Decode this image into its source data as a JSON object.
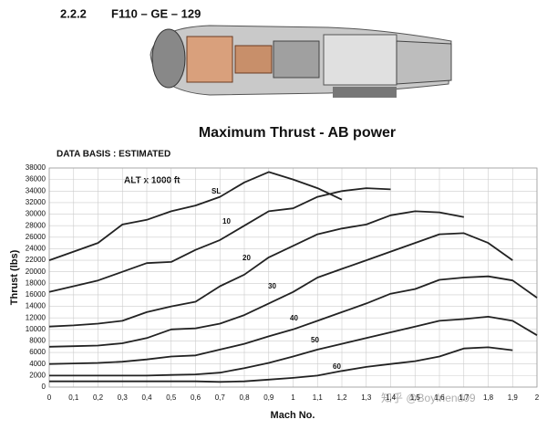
{
  "header": {
    "section": "2.2.2",
    "engine": "F110 – GE – 129"
  },
  "chart_data": {
    "type": "line",
    "title": "Maximum Thrust - AB power",
    "subtitle": "DATA BASIS : ESTIMATED",
    "annotation": "ALT x 1000 ft",
    "watermark": "知乎 @Boyfriend09",
    "x_label": "Mach No.",
    "y_label": "Thrust (lbs)",
    "x": [
      0,
      0.1,
      0.2,
      0.3,
      0.4,
      0.5,
      0.6,
      0.7,
      0.8,
      0.9,
      1,
      1.1,
      1.2,
      1.3,
      1.4,
      1.5,
      1.6,
      1.7,
      1.8,
      1.9,
      2
    ],
    "series": [
      {
        "name": "SL",
        "color": "#222222",
        "values": [
          22000,
          23500,
          25000,
          28200,
          29000,
          30500,
          31500,
          33000,
          35500,
          37300,
          36000,
          34500,
          32500,
          null,
          null,
          null,
          null,
          null,
          null,
          null,
          null
        ]
      },
      {
        "name": "10",
        "color": "#222222",
        "values": [
          16500,
          17500,
          18500,
          20000,
          21500,
          21700,
          23800,
          25500,
          28000,
          30500,
          31000,
          33000,
          34000,
          34500,
          34300,
          null,
          null,
          null,
          null,
          null,
          null
        ]
      },
      {
        "name": "20",
        "color": "#222222",
        "values": [
          10500,
          10700,
          11000,
          11500,
          13000,
          14000,
          14800,
          17500,
          19500,
          22500,
          24500,
          26500,
          27500,
          28200,
          29800,
          30500,
          30300,
          29500,
          null,
          null,
          null
        ]
      },
      {
        "name": "30",
        "color": "#222222",
        "values": [
          7000,
          7100,
          7200,
          7600,
          8500,
          10000,
          10200,
          11000,
          12500,
          14500,
          16500,
          19000,
          20500,
          22000,
          23500,
          25000,
          26500,
          26700,
          25000,
          22000,
          null
        ]
      },
      {
        "name": "40",
        "color": "#222222",
        "values": [
          4000,
          4100,
          4200,
          4400,
          4800,
          5300,
          5500,
          6500,
          7500,
          8800,
          10000,
          11500,
          13000,
          14500,
          16200,
          17000,
          18600,
          19000,
          19200,
          18500,
          15500
        ]
      },
      {
        "name": "50",
        "color": "#222222",
        "values": [
          2000,
          2000,
          2000,
          2000,
          2000,
          2100,
          2200,
          2500,
          3300,
          4200,
          5300,
          6500,
          7500,
          8500,
          9500,
          10500,
          11500,
          11800,
          12200,
          11500,
          9000
        ]
      },
      {
        "name": "60",
        "color": "#222222",
        "values": [
          1000,
          1000,
          1000,
          1000,
          1000,
          1000,
          1000,
          900,
          1000,
          1300,
          1600,
          2000,
          2800,
          3500,
          4000,
          4500,
          5300,
          6700,
          6900,
          6400,
          null
        ]
      }
    ],
    "xlim": [
      0,
      2
    ],
    "ylim": [
      0,
      38000
    ],
    "xticks": [
      0,
      {
        "value": 0.1,
        "label": "0,1"
      },
      {
        "value": 0.2,
        "label": "0,2"
      },
      {
        "value": 0.3,
        "label": "0,3"
      },
      {
        "value": 0.4,
        "label": "0,4"
      },
      {
        "value": 0.5,
        "label": "0,5"
      },
      {
        "value": 0.6,
        "label": "0,6"
      },
      {
        "value": 0.7,
        "label": "0,7"
      },
      {
        "value": 0.8,
        "label": "0,8"
      },
      {
        "value": 0.9,
        "label": "0,9"
      },
      1,
      {
        "value": 1.1,
        "label": "1,1"
      },
      {
        "value": 1.2,
        "label": "1,2"
      },
      {
        "value": 1.3,
        "label": "1,3"
      },
      {
        "value": 1.4,
        "label": "1,4"
      },
      {
        "value": 1.5,
        "label": "1,5"
      },
      {
        "value": 1.6,
        "label": "1,6"
      },
      {
        "value": 1.7,
        "label": "1,7"
      },
      {
        "value": 1.8,
        "label": "1,8"
      },
      {
        "value": 1.9,
        "label": "1,9"
      },
      2
    ],
    "yticks": [
      0,
      2000,
      4000,
      6000,
      8000,
      10000,
      12000,
      14000,
      16000,
      18000,
      20000,
      22000,
      24000,
      26000,
      28000,
      30000,
      32000,
      34000,
      36000,
      38000
    ],
    "grid": true
  }
}
